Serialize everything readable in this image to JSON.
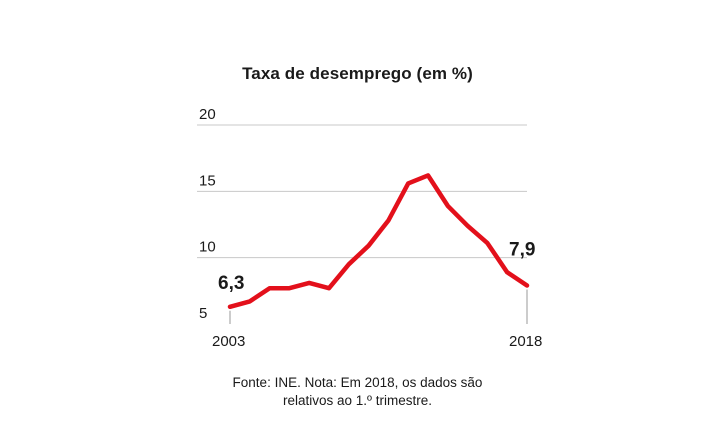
{
  "chart_data": {
    "type": "line",
    "title": "Taxa de desemprego (em %)",
    "xlabel": "",
    "ylabel": "",
    "x": [
      2003,
      2004,
      2005,
      2006,
      2007,
      2008,
      2009,
      2010,
      2011,
      2012,
      2013,
      2014,
      2015,
      2016,
      2017,
      2018
    ],
    "series": [
      {
        "values": [
          6.3,
          6.7,
          7.7,
          7.7,
          8.1,
          7.7,
          9.5,
          10.9,
          12.8,
          15.6,
          16.2,
          13.9,
          12.4,
          11.1,
          8.9,
          7.9
        ]
      }
    ],
    "ylim": [
      5,
      20
    ],
    "yticks": [
      5,
      10,
      15,
      20
    ],
    "xtick_labels": [
      "2003",
      "2018"
    ],
    "start_label": "6,3",
    "end_label": "7,9",
    "grid": "horizontal",
    "line_color": "#e3101b"
  },
  "note": {
    "line1": "Fonte: INE. Nota: Em 2018, os dados são",
    "line2": "relativos ao 1.º trimestre."
  }
}
